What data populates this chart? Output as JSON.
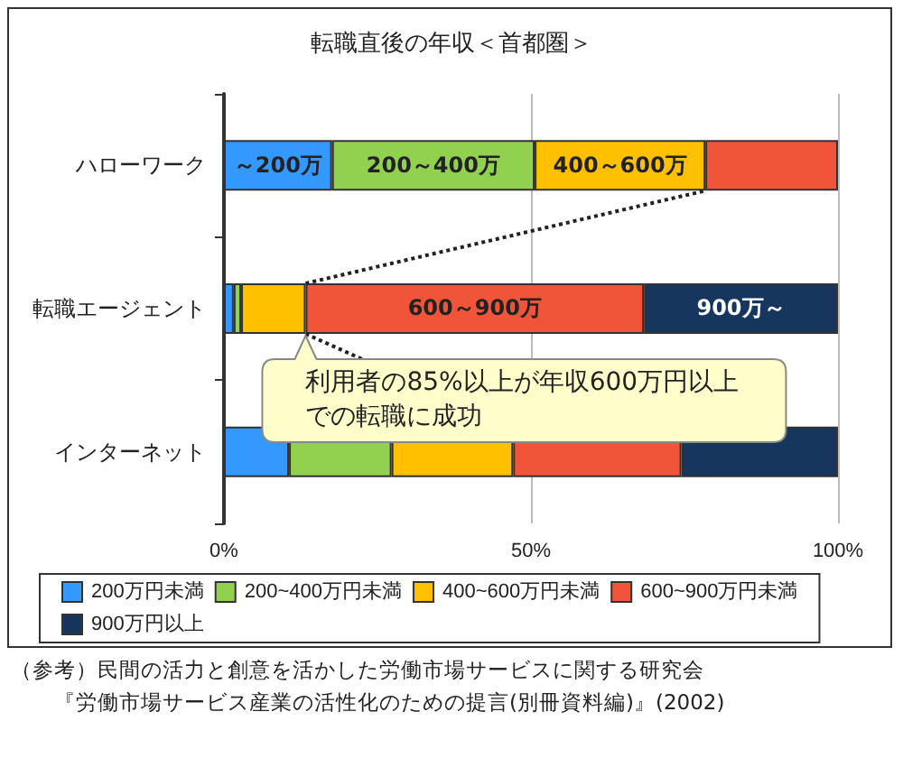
{
  "chart_data": {
    "type": "bar",
    "title": "転職直後の年収＜首都圏＞",
    "orientation": "horizontal",
    "stacked": true,
    "categories": [
      "ハローワーク",
      "転職エージェント",
      "インターネット"
    ],
    "series": [
      {
        "name": "200万円未満",
        "color": "#3399ff",
        "values": [
          17.6,
          1.6,
          10.6
        ]
      },
      {
        "name": "200~400万円未満",
        "color": "#92d050",
        "values": [
          33,
          1.2,
          16.7
        ]
      },
      {
        "name": "400~600万円未満",
        "color": "#ffc000",
        "values": [
          27.8,
          10.5,
          19.8
        ]
      },
      {
        "name": "600~900万円未満",
        "color": "#f0553a",
        "values": [
          21.6,
          55.1,
          27.4
        ]
      },
      {
        "name": "900万円以上",
        "color": "#17365d",
        "values": [
          0,
          31.6,
          25.5
        ]
      }
    ],
    "xlim": [
      0,
      100
    ],
    "xticks": [
      {
        "value": 0,
        "label": "0%"
      },
      {
        "value": 50,
        "label": "50%"
      },
      {
        "value": 100,
        "label": "100%"
      }
    ],
    "grid": "x",
    "legend": "bottom",
    "annotations": [
      "～200万",
      "200～400万",
      "400～600万",
      "600～900万",
      "900万～",
      "利用者の85%以上が年収600万円以上での転職に成功",
      "（参考）民間の活力と創意を活かした労働市場サービスに関する研究会",
      "『労働市場サービス産業の活性化のための提言(別冊資料編)』(2002)"
    ]
  }
}
